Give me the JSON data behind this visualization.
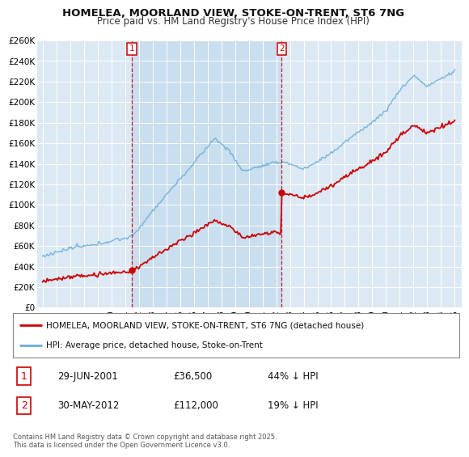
{
  "title": "HOMELEA, MOORLAND VIEW, STOKE-ON-TRENT, ST6 7NG",
  "subtitle": "Price paid vs. HM Land Registry's House Price Index (HPI)",
  "background_color": "#ffffff",
  "plot_bg_color": "#dce9f5",
  "ylabel": "",
  "ylim": [
    0,
    260000
  ],
  "yticks": [
    0,
    20000,
    40000,
    60000,
    80000,
    100000,
    120000,
    140000,
    160000,
    180000,
    200000,
    220000,
    240000,
    260000
  ],
  "ytick_labels": [
    "£0",
    "£20K",
    "£40K",
    "£60K",
    "£80K",
    "£100K",
    "£120K",
    "£140K",
    "£160K",
    "£180K",
    "£200K",
    "£220K",
    "£240K",
    "£260K"
  ],
  "hpi_color": "#6baed6",
  "price_color": "#cc0000",
  "vline_color": "#cc0000",
  "shade_color": "#cce0f0",
  "purchase_1_date": 2001.5,
  "purchase_1_price": 36500,
  "purchase_1_label": "1",
  "purchase_2_date": 2012.41,
  "purchase_2_price": 112000,
  "purchase_2_label": "2",
  "legend_line1": "HOMELEA, MOORLAND VIEW, STOKE-ON-TRENT, ST6 7NG (detached house)",
  "legend_line2": "HPI: Average price, detached house, Stoke-on-Trent",
  "anno1_num": "1",
  "anno1_date": "29-JUN-2001",
  "anno1_price": "£36,500",
  "anno1_hpi": "44% ↓ HPI",
  "anno2_num": "2",
  "anno2_date": "30-MAY-2012",
  "anno2_price": "£112,000",
  "anno2_hpi": "19% ↓ HPI",
  "copyright_text": "Contains HM Land Registry data © Crown copyright and database right 2025.\nThis data is licensed under the Open Government Licence v3.0.",
  "title_fontsize": 9.5,
  "subtitle_fontsize": 8.5,
  "xlim_left": 1994.6,
  "xlim_right": 2025.5
}
